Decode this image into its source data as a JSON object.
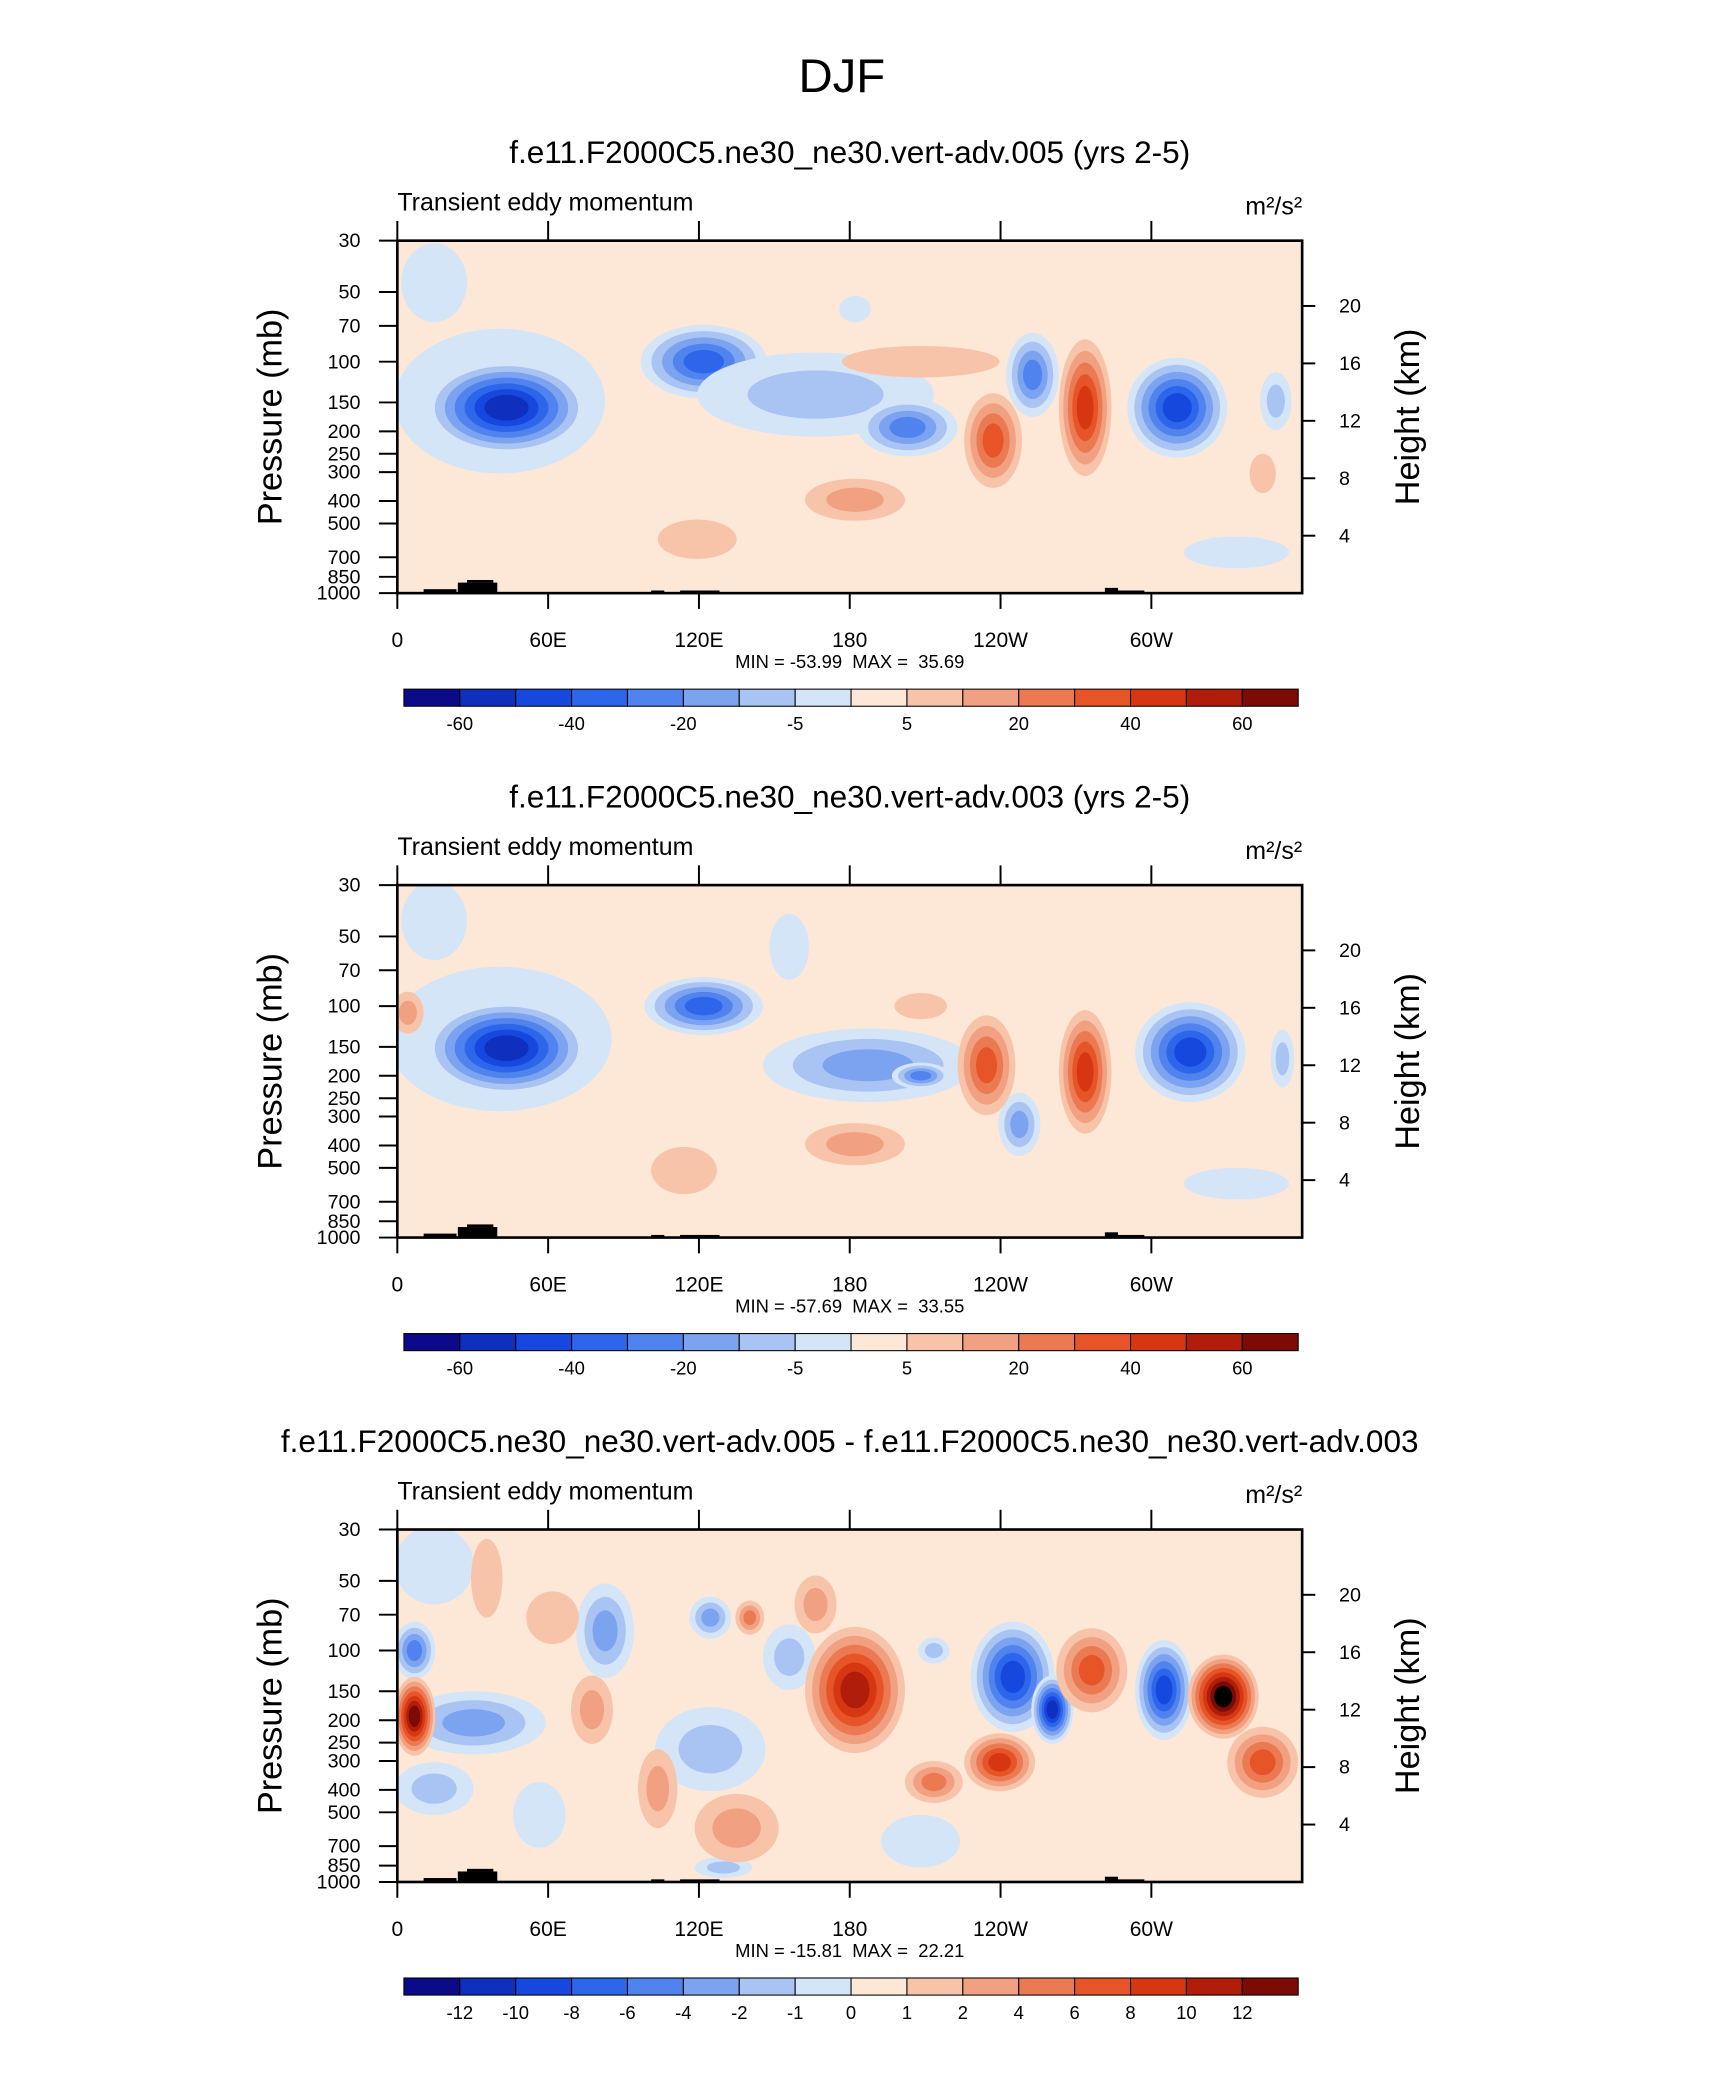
{
  "title": "DJF",
  "axes": {
    "xlim": [
      0,
      360
    ],
    "xticks": [
      0,
      {
        "value": 60,
        "label": "60E"
      },
      {
        "value": 120,
        "label": "120E"
      },
      180,
      {
        "value": 240,
        "label": "120W"
      },
      {
        "value": 300,
        "label": "60W"
      }
    ],
    "ylim": [
      30,
      1000
    ],
    "log_scale": true,
    "yticks": [
      30,
      50,
      70,
      100,
      150,
      200,
      250,
      300,
      400,
      500,
      700,
      850,
      1000
    ],
    "y2ticks": [
      4,
      8,
      12,
      16,
      20
    ],
    "y_label": "Pressure (mb)",
    "y2_label": "Height (km)"
  },
  "colorbar_colors": [
    "#0b0b8a",
    "#0f2fbd",
    "#1748de",
    "#2d66eb",
    "#5083ee",
    "#7ca3f0",
    "#a9c4f3",
    "#d4e5f8",
    "#fde8d8",
    "#f7c4aa",
    "#f1a081",
    "#eb7a53",
    "#e65428",
    "#d73613",
    "#b01d0a",
    "#7c0a05"
  ],
  "panels": [
    {
      "title": "f.e11.F2000C5.ne30_ne30.vert-adv.005 (yrs 2-5)",
      "left_label": "Transient eddy momentum",
      "units": "m²/s²",
      "stats": "MIN = -53.99  MAX =  35.69",
      "colorbar_labels": [
        -60,
        null,
        -40,
        null,
        -20,
        null,
        -5,
        null,
        5,
        null,
        20,
        null,
        40,
        null,
        60
      ]
    },
    {
      "title": "f.e11.F2000C5.ne30_ne30.vert-adv.003 (yrs 2-5)",
      "left_label": "Transient eddy momentum",
      "units": "m²/s²",
      "stats": "MIN = -57.69  MAX =  33.55",
      "colorbar_labels": [
        -60,
        null,
        -40,
        null,
        -20,
        null,
        -5,
        null,
        5,
        null,
        20,
        null,
        40,
        null,
        60
      ]
    },
    {
      "title": "f.e11.F2000C5.ne30_ne30.vert-adv.005 - f.e11.F2000C5.ne30_ne30.vert-adv.003",
      "left_label": "Transient eddy momentum",
      "units": "m²/s²",
      "stats": "MIN = -15.81  MAX =  22.21",
      "colorbar_labels": [
        -12,
        -10,
        -8,
        -6,
        -4,
        -2,
        -1,
        0,
        1,
        2,
        4,
        6,
        8,
        10,
        12
      ]
    }
  ]
}
